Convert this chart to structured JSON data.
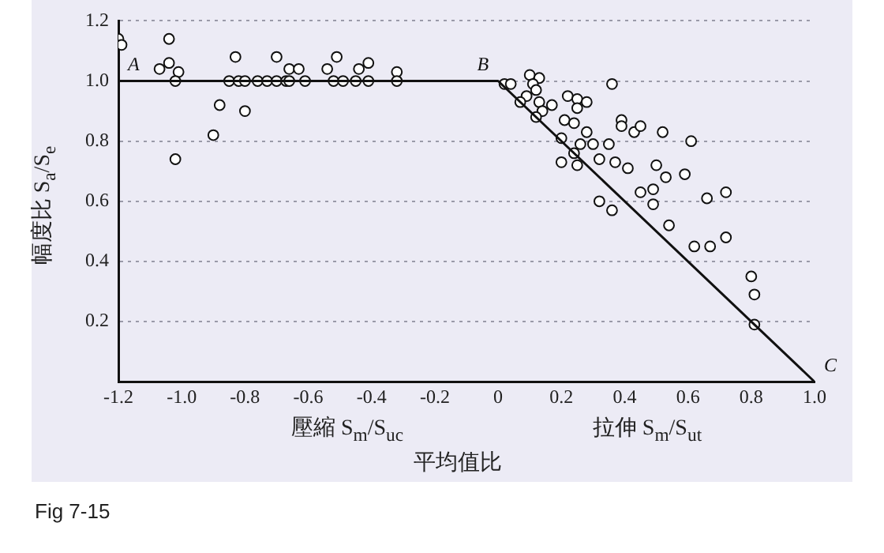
{
  "chart_data": {
    "type": "scatter",
    "ylabel": "幅度比 S$_{a}$/S$_{e}$",
    "xlabel": "平均值比",
    "xlim": [
      -1.2,
      1.0
    ],
    "xticks": [
      -1.2,
      {
        "value": -1,
        "label": "-1.0"
      },
      -0.8,
      -0.6,
      -0.4,
      -0.2,
      0,
      0.2,
      0.4,
      0.6,
      0.8,
      {
        "value": 1,
        "label": "1.0"
      }
    ],
    "ylim": [
      0,
      1.2
    ],
    "yticks": [
      0.2,
      0.4,
      0.6,
      0.8,
      {
        "value": 1,
        "label": "1.0"
      },
      1.2
    ],
    "grid": "y",
    "marker": "circle",
    "series": [
      {
        "type": "line",
        "marker": "none",
        "color": "#111111",
        "x": [
          -1.2,
          0,
          1.0
        ],
        "values": [
          1.0,
          1.0,
          0
        ]
      },
      {
        "type": "scatter",
        "color": "#111111",
        "x": [
          -1.2,
          -1.19,
          -1.07,
          -1.04,
          -1.04,
          -1.01,
          -1.02,
          -1.02,
          -0.9,
          -0.88,
          -0.8,
          -0.83,
          -0.7,
          -0.85,
          -0.82,
          -0.8,
          -0.76,
          -0.73,
          -0.7,
          -0.67,
          -0.66,
          -0.66,
          -0.63,
          -0.61,
          -0.54,
          -0.51,
          -0.52,
          -0.49,
          -0.45,
          -0.44,
          -0.41,
          -0.41,
          -0.32,
          -0.32,
          0.02,
          0.04,
          0.1,
          0.13,
          0.11,
          0.12,
          0.09,
          0.07,
          0.13,
          0.14,
          0.17,
          0.12,
          0.21,
          0.24,
          0.22,
          0.25,
          0.28,
          0.25,
          0.2,
          0.28,
          0.26,
          0.24,
          0.2,
          0.25,
          0.3,
          0.32,
          0.35,
          0.36,
          0.39,
          0.39,
          0.43,
          0.45,
          0.37,
          0.41,
          0.52,
          0.61,
          0.5,
          0.53,
          0.59,
          0.45,
          0.49,
          0.49,
          0.32,
          0.36,
          0.66,
          0.72,
          0.54,
          0.62,
          0.67,
          0.72,
          0.8,
          0.81,
          0.81
        ],
        "values": [
          1.14,
          1.12,
          1.04,
          1.14,
          1.06,
          1.03,
          1.0,
          0.74,
          0.82,
          0.92,
          0.9,
          1.08,
          1.08,
          1.0,
          1.0,
          1.0,
          1.0,
          1.0,
          1.0,
          1.0,
          1.0,
          1.04,
          1.04,
          1.0,
          1.04,
          1.08,
          1.0,
          1.0,
          1.0,
          1.04,
          1.06,
          1.0,
          1.03,
          1.0,
          0.99,
          0.99,
          1.02,
          1.01,
          0.99,
          0.97,
          0.95,
          0.93,
          0.93,
          0.9,
          0.92,
          0.88,
          0.87,
          0.86,
          0.95,
          0.94,
          0.93,
          0.91,
          0.81,
          0.83,
          0.79,
          0.76,
          0.73,
          0.72,
          0.79,
          0.74,
          0.79,
          0.99,
          0.87,
          0.85,
          0.83,
          0.85,
          0.73,
          0.71,
          0.83,
          0.8,
          0.72,
          0.68,
          0.69,
          0.63,
          0.64,
          0.59,
          0.6,
          0.57,
          0.61,
          0.63,
          0.52,
          0.45,
          0.45,
          0.48,
          0.35,
          0.29,
          0.19
        ]
      }
    ],
    "annotations": [
      {
        "text": "A",
        "x": -1.2,
        "y": 1.0
      },
      {
        "text": "B",
        "x": 0,
        "y": 1.0
      },
      {
        "text": "C",
        "x": 1.0,
        "y": 0
      },
      "壓縮 S$_{m}$/S$_{uc}$",
      "拉伸 S$_{m}$/S$_{ut}$",
      "Fig 7-15"
    ]
  }
}
